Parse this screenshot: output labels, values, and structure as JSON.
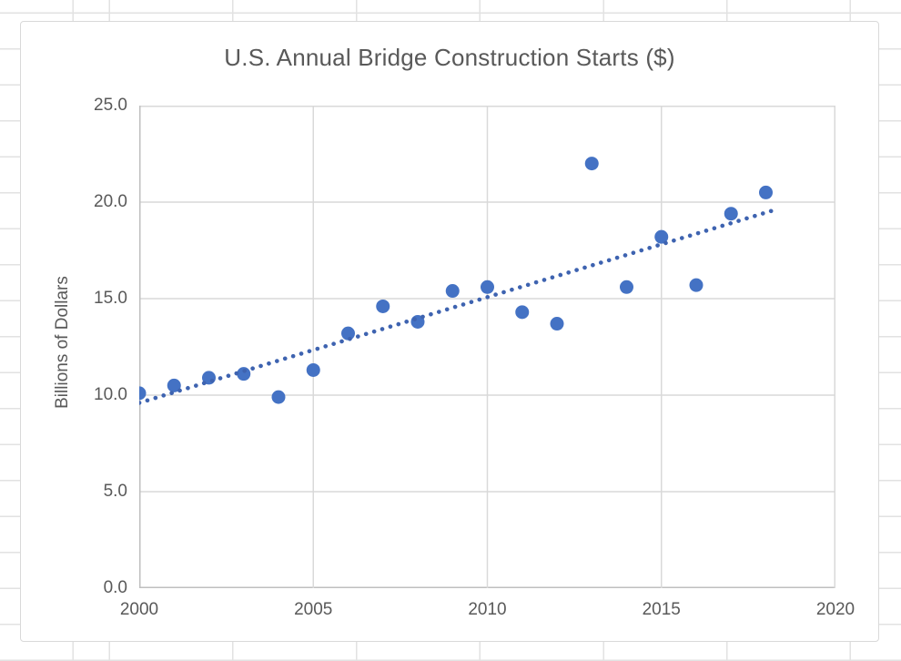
{
  "colors": {
    "marker": "#4472C4",
    "trendline": "#3E63B0",
    "plot_grid": "#D9D9D9",
    "axis_line": "#BFBFBF",
    "text": "#595959",
    "sheet_grid": "#E2E2E2"
  },
  "chart_data": {
    "type": "scatter",
    "title": "U.S. Annual Bridge Construction Starts ($)",
    "xlabel": "",
    "ylabel": "Billions of Dollars",
    "xlim": [
      2000,
      2020
    ],
    "ylim": [
      0,
      25
    ],
    "grid": true,
    "legend": "none",
    "x_tick_values": [
      2000,
      2005,
      2010,
      2015,
      2020
    ],
    "x_tick_labels": [
      "2000",
      "2005",
      "2010",
      "2015",
      "2020"
    ],
    "y_tick_values": [
      0,
      5,
      10,
      15,
      20,
      25
    ],
    "y_tick_labels": [
      "0.0",
      "5.0",
      "10.0",
      "15.0",
      "20.0",
      "25.0"
    ],
    "x": [
      2000,
      2001,
      2002,
      2003,
      2004,
      2005,
      2006,
      2007,
      2008,
      2009,
      2010,
      2011,
      2012,
      2013,
      2014,
      2015,
      2016,
      2017,
      2018
    ],
    "y": [
      10.1,
      10.5,
      10.9,
      11.1,
      9.9,
      11.3,
      13.2,
      14.6,
      13.8,
      15.4,
      15.6,
      14.3,
      13.7,
      22.0,
      15.6,
      18.2,
      15.7,
      19.4,
      20.5
    ],
    "trendline": {
      "style": "dotted",
      "x1": 2000,
      "y1": 9.6,
      "x2": 2018.35,
      "y2": 19.65
    }
  }
}
